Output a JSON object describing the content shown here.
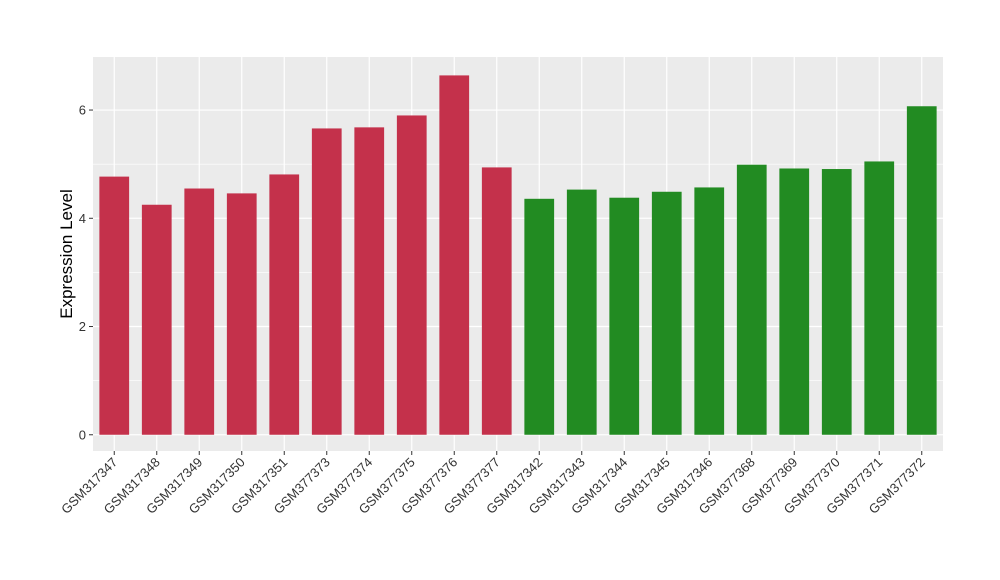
{
  "chart_data": {
    "type": "bar",
    "ylabel": "Expression Level",
    "xlabel": "",
    "ylim": [
      -0.3,
      6.98
    ],
    "yticks": [
      0,
      2,
      4,
      6
    ],
    "grid": true,
    "categories": [
      "GSM317347",
      "GSM317348",
      "GSM317349",
      "GSM317350",
      "GSM317351",
      "GSM377373",
      "GSM377374",
      "GSM377375",
      "GSM377376",
      "GSM377377",
      "GSM317342",
      "GSM317343",
      "GSM317344",
      "GSM317345",
      "GSM317346",
      "GSM377368",
      "GSM377369",
      "GSM377370",
      "GSM377371",
      "GSM377372"
    ],
    "values": [
      4.77,
      4.25,
      4.55,
      4.46,
      4.81,
      5.66,
      5.68,
      5.9,
      6.64,
      4.94,
      4.36,
      4.53,
      4.38,
      4.49,
      4.57,
      4.99,
      4.92,
      4.91,
      5.05,
      6.07
    ],
    "bar_colors": [
      "#c4314b",
      "#c4314b",
      "#c4314b",
      "#c4314b",
      "#c4314b",
      "#c4314b",
      "#c4314b",
      "#c4314b",
      "#c4314b",
      "#c4314b",
      "#228b22",
      "#228b22",
      "#228b22",
      "#228b22",
      "#228b22",
      "#228b22",
      "#228b22",
      "#228b22",
      "#228b22",
      "#228b22"
    ],
    "panel_color": "#ebebeb",
    "grid_color": "#ffffff"
  }
}
